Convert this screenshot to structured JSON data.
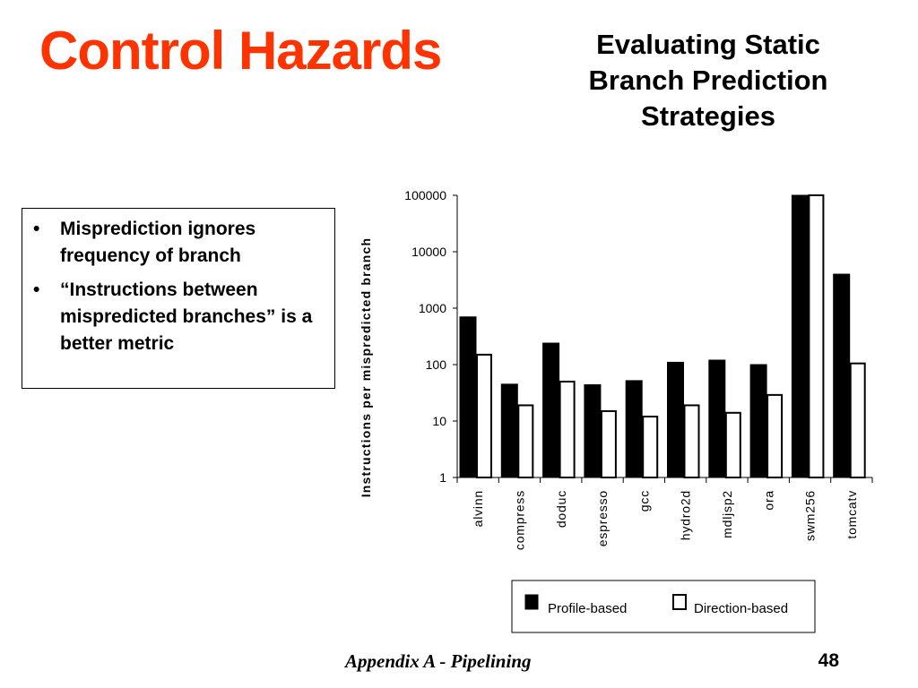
{
  "slide": {
    "title": "Control Hazards",
    "subtitle_lines": [
      "Evaluating Static",
      "Branch Prediction",
      "Strategies"
    ],
    "bullets": [
      "Misprediction ignores frequency of branch",
      "“Instructions between mispredicted branches” is a better metric"
    ],
    "footer": "Appendix A - Pipelining",
    "page_number": "48"
  },
  "colors": {
    "title": "#ff3300",
    "profile_fill": "#000000",
    "direction_fill": "#ffffff"
  },
  "chart_data": {
    "type": "bar",
    "title": "",
    "xlabel": "",
    "ylabel": "Instructions per mispredicted branch",
    "y_scale": "log",
    "ylim": [
      1,
      100000
    ],
    "y_ticks": [
      "1",
      "10",
      "100",
      "1000",
      "10000",
      "100000"
    ],
    "categories": [
      "alvinn",
      "compress",
      "doduc",
      "espresso",
      "gcc",
      "hydro2d",
      "mdljsp2",
      "ora",
      "swm256",
      "tomcatv"
    ],
    "series": [
      {
        "name": "Profile-based",
        "values": [
          700,
          45,
          240,
          44,
          52,
          110,
          120,
          100,
          100000,
          4000
        ]
      },
      {
        "name": "Direction-based",
        "values": [
          150,
          19,
          50,
          15,
          12,
          19,
          14,
          29,
          100000,
          105
        ]
      }
    ],
    "legend": "bottom"
  }
}
